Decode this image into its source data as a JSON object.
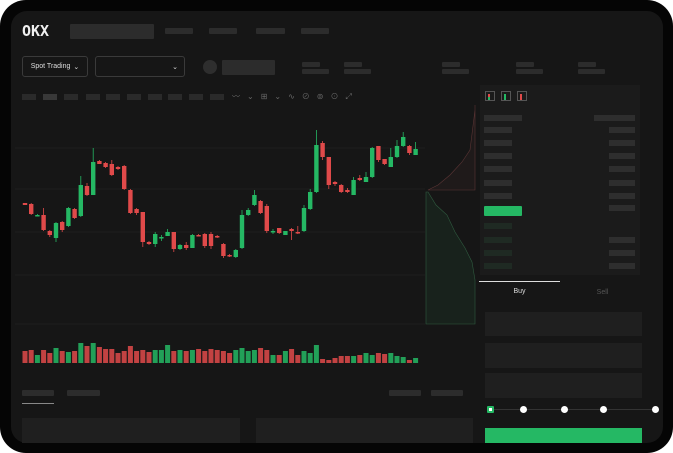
{
  "brand": {
    "logo": "OKX"
  },
  "header": {
    "market_select": "Spot Trading"
  },
  "order_form": {
    "tabs": [
      "Buy",
      "Sell"
    ],
    "active_tab": "Buy",
    "leverage_slider_value": 0
  },
  "colors": {
    "up": "#25b864",
    "down": "#e04a4a",
    "background": "#161616"
  },
  "chart_data": {
    "type": "candlestick",
    "candles": [
      [
        97,
        95,
        97,
        95
      ],
      [
        96,
        86,
        97,
        85
      ],
      [
        84,
        85,
        86,
        84
      ],
      [
        85,
        70,
        92,
        69
      ],
      [
        69,
        65,
        70,
        63
      ],
      [
        62,
        77,
        78,
        58
      ],
      [
        78,
        70,
        79,
        68
      ],
      [
        74,
        92,
        93,
        73
      ],
      [
        91,
        82,
        92,
        81
      ],
      [
        84,
        115,
        124,
        83
      ],
      [
        114,
        105,
        117,
        104
      ],
      [
        105,
        138,
        152,
        105
      ],
      [
        139,
        136,
        140,
        136
      ],
      [
        137,
        133,
        138,
        132
      ],
      [
        136,
        125,
        140,
        124
      ],
      [
        133,
        131,
        134,
        130
      ],
      [
        134,
        111,
        135,
        110
      ],
      [
        110,
        87,
        111,
        86
      ],
      [
        91,
        87,
        92,
        85
      ],
      [
        88,
        58,
        88,
        53
      ],
      [
        58,
        56,
        59,
        55
      ],
      [
        56,
        66,
        68,
        53
      ],
      [
        62,
        63,
        65,
        59
      ],
      [
        64,
        68,
        71,
        64
      ],
      [
        68,
        51,
        68,
        48
      ],
      [
        51,
        55,
        56,
        50
      ],
      [
        55,
        52,
        58,
        50
      ],
      [
        52,
        65,
        66,
        52
      ],
      [
        65,
        64,
        66,
        64
      ],
      [
        66,
        54,
        67,
        52
      ],
      [
        66,
        54,
        68,
        51
      ],
      [
        64,
        63,
        65,
        62
      ],
      [
        56,
        44,
        57,
        42
      ],
      [
        45,
        44,
        46,
        43
      ],
      [
        43,
        50,
        51,
        42
      ],
      [
        52,
        85,
        90,
        51
      ],
      [
        85,
        90,
        92,
        84
      ],
      [
        95,
        105,
        110,
        94
      ],
      [
        99,
        87,
        100,
        86
      ],
      [
        94,
        69,
        96,
        67
      ],
      [
        68,
        69,
        71,
        66
      ],
      [
        72,
        67,
        72,
        66
      ],
      [
        65,
        69,
        69,
        65
      ],
      [
        71,
        69,
        72,
        60
      ],
      [
        68,
        67,
        74,
        66
      ],
      [
        69,
        92,
        95,
        68
      ],
      [
        91,
        108,
        111,
        90
      ],
      [
        108,
        155,
        170,
        107
      ],
      [
        157,
        143,
        159,
        140
      ],
      [
        143,
        115,
        143,
        111
      ],
      [
        118,
        116,
        119,
        114
      ],
      [
        115,
        108,
        116,
        107
      ],
      [
        110,
        108,
        112,
        107
      ],
      [
        105,
        120,
        123,
        105
      ],
      [
        122,
        120,
        125,
        119
      ],
      [
        118,
        123,
        128,
        118
      ],
      [
        123,
        152,
        153,
        122
      ],
      [
        154,
        140,
        154,
        138
      ],
      [
        141,
        136,
        141,
        135
      ],
      [
        133,
        143,
        152,
        133
      ],
      [
        143,
        154,
        160,
        142
      ],
      [
        154,
        163,
        168,
        153
      ],
      [
        154,
        147,
        155,
        145
      ],
      [
        145,
        151,
        158,
        145
      ]
    ],
    "volume": [
      12,
      13,
      8,
      13,
      10,
      15,
      12,
      11,
      12,
      20,
      17,
      20,
      16,
      14,
      14,
      10,
      12,
      17,
      12,
      13,
      11,
      13,
      13,
      18,
      12,
      13,
      12,
      13,
      14,
      12,
      14,
      13,
      12,
      10,
      13,
      15,
      12,
      13,
      15,
      13,
      8,
      8,
      12,
      14,
      8,
      12,
      10,
      18,
      4,
      3,
      5,
      7,
      7,
      7,
      8,
      10,
      8,
      10,
      9,
      10,
      7,
      6,
      3,
      5
    ],
    "candle_format": [
      "open",
      "close",
      "high",
      "low"
    ]
  }
}
